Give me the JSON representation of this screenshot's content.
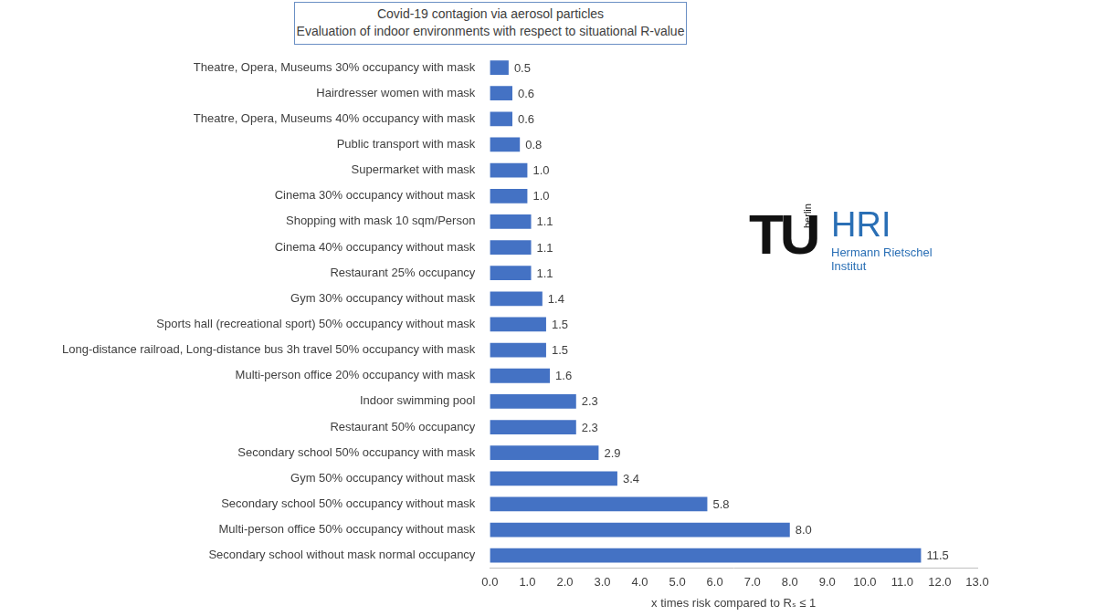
{
  "chart_data": {
    "type": "bar",
    "orientation": "horizontal",
    "title": [
      "Covid-19 contagion via aerosol particles",
      "Evaluation of indoor environments with respect to situational R-value"
    ],
    "x_label": "x times risk compared to Rₛ ≤ 1",
    "annotations": [
      "TU",
      "berlin",
      "HRI",
      "Hermann Rietschel",
      "Institut"
    ],
    "categories": [
      "Theatre, Opera, Museums 30% occupancy with mask",
      "Hairdresser women with mask",
      "Theatre, Opera, Museums 40% occupancy with mask",
      "Public transport with mask",
      "Supermarket with mask",
      "Cinema 30% occupancy without mask",
      "Shopping with mask 10 sqm/Person",
      "Cinema 40% occupancy without mask",
      "Restaurant 25% occupancy",
      "Gym 30% occupancy without mask",
      "Sports hall (recreational sport) 50% occupancy without mask",
      "Long-distance railroad, Long-distance bus 3h travel 50% occupancy with mask",
      "Multi-person office 20% occupancy with mask",
      "Indoor swimming pool",
      "Restaurant 50% occupancy",
      "Secondary school 50% occupancy with mask",
      "Gym 50% occupancy without mask",
      "Secondary school 50% occupancy without mask",
      "Multi-person office 50% occupancy without mask",
      "Secondary school without mask normal occupancy"
    ],
    "values": [
      0.5,
      0.6,
      0.6,
      0.8,
      1.0,
      1.0,
      1.1,
      1.1,
      1.1,
      1.4,
      1.5,
      1.5,
      1.6,
      2.3,
      2.3,
      2.9,
      3.4,
      5.8,
      8.0,
      11.5
    ],
    "value_labels": [
      "0.5",
      "0.6",
      "0.6",
      "0.8",
      "1.0",
      "1.0",
      "1.1",
      "1.1",
      "1.1",
      "1.4",
      "1.5",
      "1.5",
      "1.6",
      "2.3",
      "2.3",
      "2.9",
      "3.4",
      "5.8",
      "8.0",
      "11.5"
    ],
    "color": "#4472c4",
    "data_labels": true,
    "grid": false,
    "xlim": [
      0,
      13
    ],
    "xticks": [
      {
        "value": 0,
        "label": "0.0"
      },
      {
        "value": 1,
        "label": "1.0"
      },
      {
        "value": 2,
        "label": "2.0"
      },
      {
        "value": 3,
        "label": "3.0"
      },
      {
        "value": 4,
        "label": "4.0"
      },
      {
        "value": 5,
        "label": "5.0"
      },
      {
        "value": 6,
        "label": "6.0"
      },
      {
        "value": 7,
        "label": "7.0"
      },
      {
        "value": 8,
        "label": "8.0"
      },
      {
        "value": 9,
        "label": "9.0"
      },
      {
        "value": 10,
        "label": "10.0"
      },
      {
        "value": 11,
        "label": "11.0"
      },
      {
        "value": 12,
        "label": "12.0"
      },
      {
        "value": 13,
        "label": "13.0"
      }
    ]
  }
}
